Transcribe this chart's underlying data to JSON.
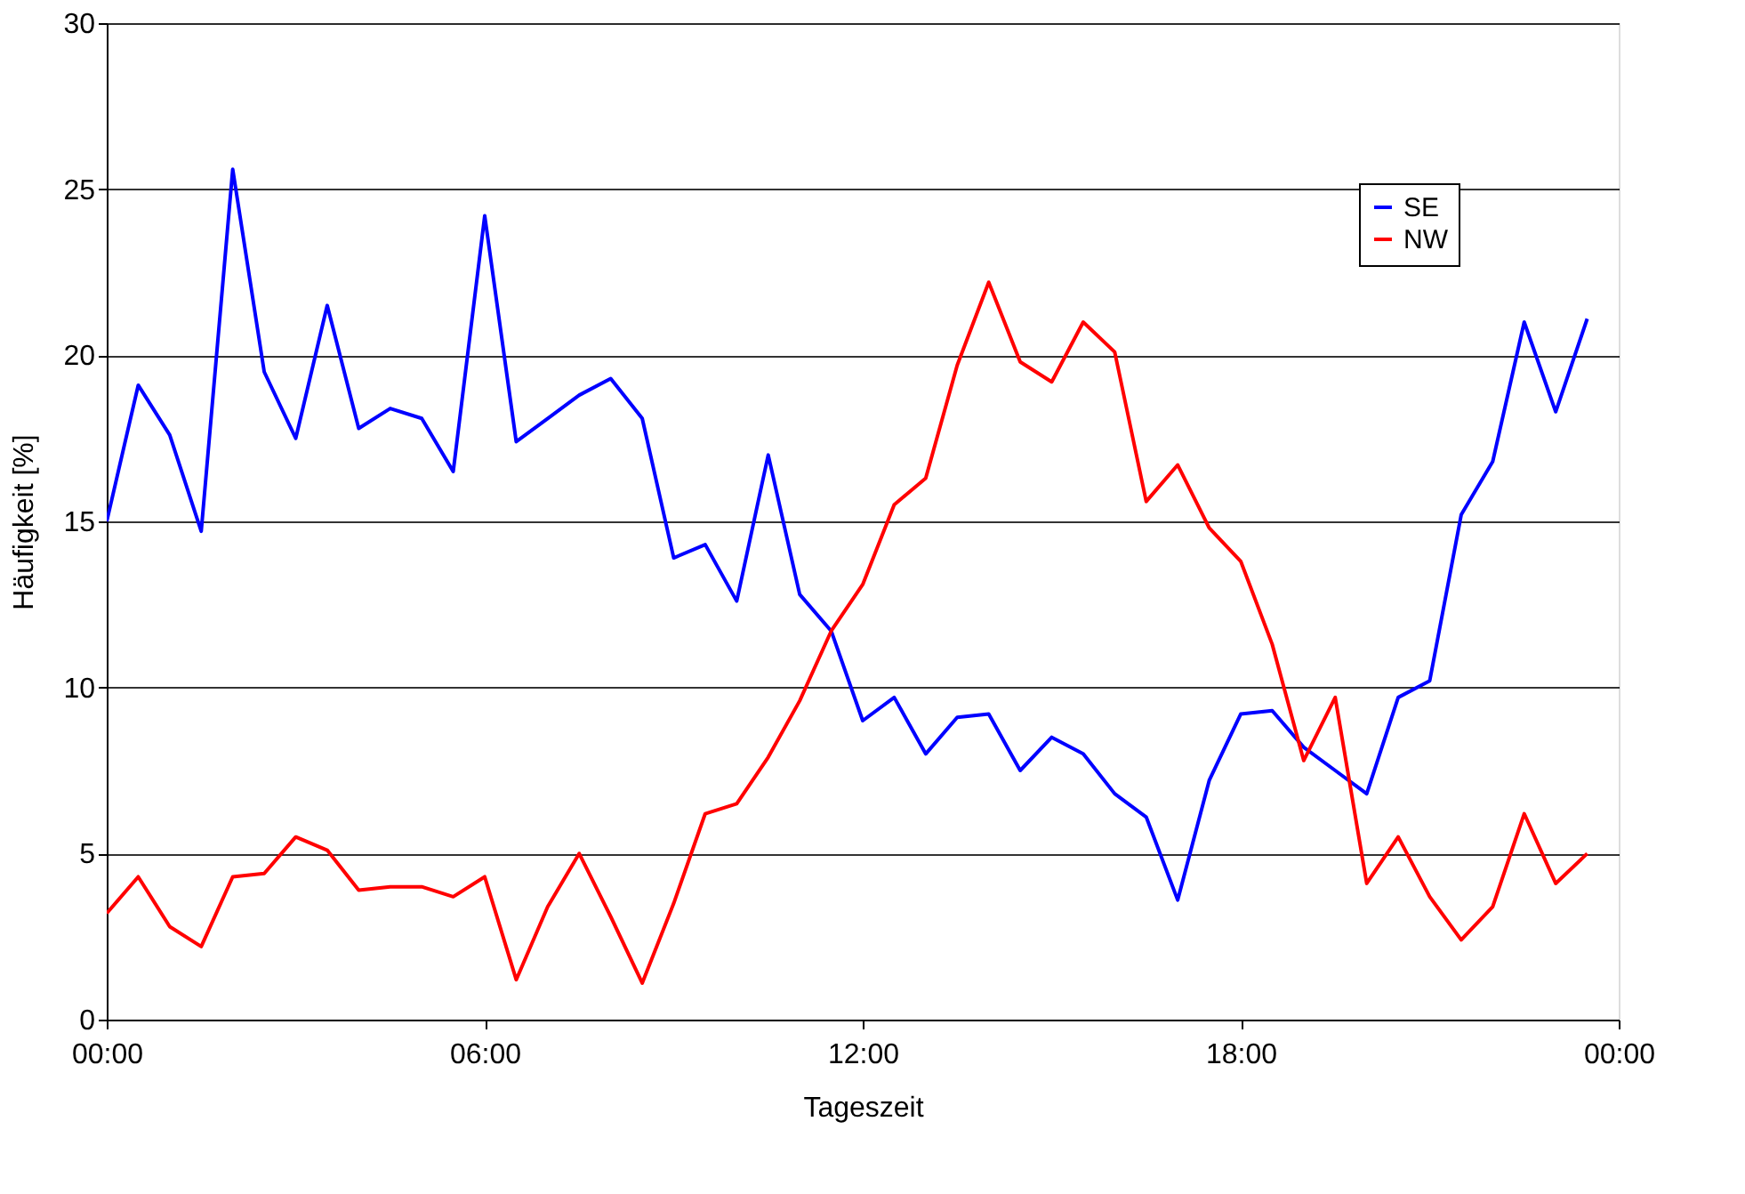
{
  "chart_data": {
    "type": "line",
    "xlabel": "Tageszeit",
    "ylabel": "Häufigkeit [%]",
    "x": [
      0,
      0.5,
      1,
      1.5,
      2,
      2.5,
      3,
      3.5,
      4,
      4.5,
      5,
      5.5,
      6,
      6.5,
      7,
      7.5,
      8,
      8.5,
      9,
      9.5,
      10,
      10.5,
      11,
      11.5,
      12,
      12.5,
      13,
      13.5,
      14,
      14.5,
      15,
      15.5,
      16,
      16.5,
      17,
      17.5,
      18,
      18.5,
      19,
      19.5,
      20,
      20.5,
      21,
      21.5,
      22,
      22.5,
      23,
      23.5
    ],
    "series": [
      {
        "name": "SE",
        "color": "#0000ff",
        "values": [
          15,
          19.1,
          17.6,
          14.7,
          25.6,
          19.5,
          17.5,
          21.5,
          17.8,
          18.4,
          18.1,
          16.5,
          24.2,
          17.4,
          18.1,
          18.8,
          19.3,
          18.1,
          13.9,
          14.3,
          12.6,
          17.0,
          12.8,
          11.7,
          9.0,
          9.7,
          8.0,
          9.1,
          9.2,
          7.5,
          8.5,
          8.0,
          6.8,
          6.1,
          3.6,
          7.2,
          9.2,
          9.3,
          8.2,
          7.5,
          6.8,
          9.7,
          10.2,
          15.2,
          16.8,
          21.0,
          18.3,
          21.1
        ]
      },
      {
        "name": "NW",
        "color": "#ff0000",
        "values": [
          3.2,
          4.3,
          2.8,
          2.2,
          4.3,
          4.4,
          5.5,
          5.1,
          3.9,
          4.0,
          4.0,
          3.7,
          4.3,
          1.2,
          3.4,
          5.0,
          3.1,
          1.1,
          3.5,
          6.2,
          6.5,
          7.9,
          9.6,
          11.7,
          13.1,
          15.5,
          16.3,
          19.7,
          22.2,
          19.8,
          19.2,
          21.0,
          20.1,
          15.6,
          16.7,
          14.8,
          13.8,
          11.3,
          7.8,
          9.7,
          4.1,
          5.5,
          3.7,
          2.4,
          3.4,
          6.2,
          4.1,
          5.0
        ]
      }
    ],
    "xlim": [
      0,
      24
    ],
    "xticks": [
      {
        "value": 0,
        "label": "00:00"
      },
      {
        "value": 6,
        "label": "06:00"
      },
      {
        "value": 12,
        "label": "12:00"
      },
      {
        "value": 18,
        "label": "18:00"
      },
      {
        "value": 24,
        "label": "00:00"
      }
    ],
    "ylim": [
      0,
      30
    ],
    "yticks": [
      0,
      5,
      10,
      15,
      20,
      25,
      30
    ],
    "grid": "y",
    "legend": "top right",
    "marker": "none",
    "line_style": "solid"
  }
}
